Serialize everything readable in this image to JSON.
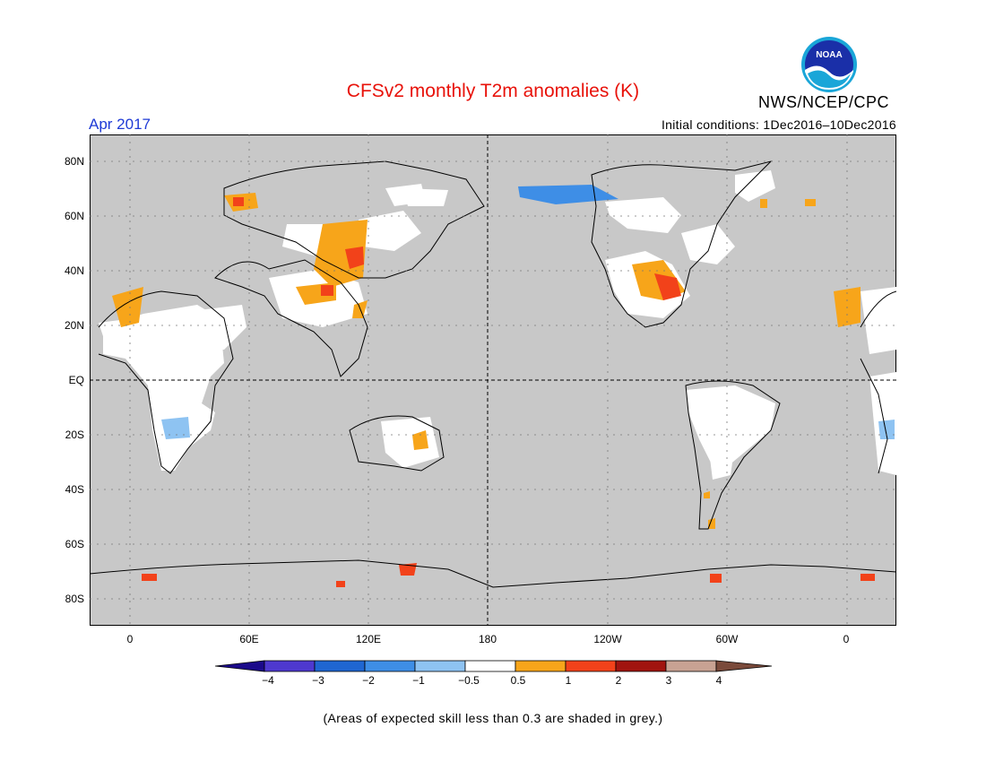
{
  "title": "CFSv2 monthly T2m anomalies (K)",
  "period": "Apr 2017",
  "initial_conditions": "Initial conditions: 1Dec2016–10Dec2016",
  "organization": "NWS/NCEP/CPC",
  "logo_text": "NOAA",
  "colors": {
    "title": "#e8120a",
    "period": "#1f3bd6",
    "ocean_grey": "#c8c8c8",
    "land_white": "#ffffff"
  },
  "map": {
    "lat_labels": [
      "80N",
      "60N",
      "40N",
      "20N",
      "EQ",
      "20S",
      "40S",
      "60S",
      "80S"
    ],
    "lon_labels": [
      "0",
      "60E",
      "120E",
      "180",
      "120W",
      "60W",
      "0"
    ]
  },
  "colorbar": {
    "tick_labels": [
      "−4",
      "−3",
      "−2",
      "−1",
      "−0.5",
      "0.5",
      "1",
      "2",
      "3",
      "4"
    ],
    "colors": [
      "#1b0a8a",
      "#4e39cf",
      "#1f66d1",
      "#3e8ee6",
      "#8ec3f2",
      "#ffffff",
      "#f7a51a",
      "#f2421a",
      "#a1140f",
      "#c8a293",
      "#7a4a3b"
    ]
  },
  "note": "(Areas of expected skill less than 0.3 are shaded in grey.)"
}
